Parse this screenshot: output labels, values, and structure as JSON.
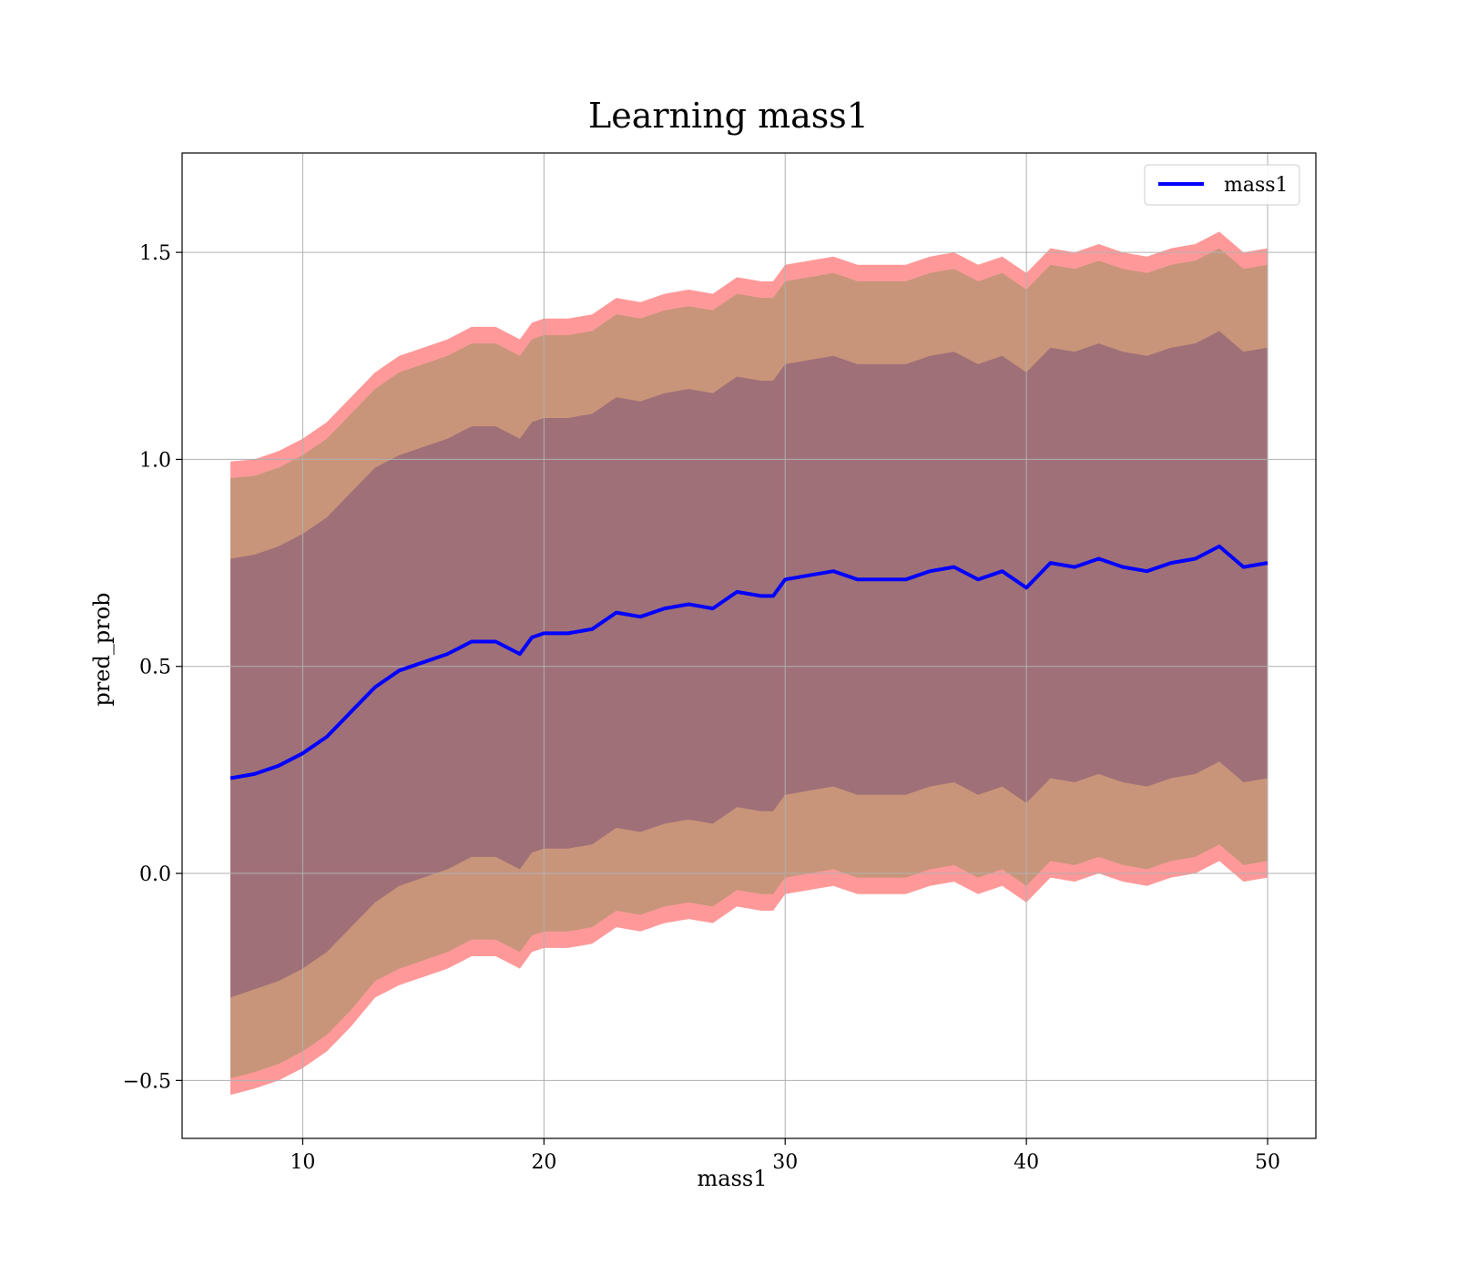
{
  "chart_data": {
    "type": "line",
    "title": "Learning mass1",
    "xlabel": "mass1",
    "ylabel": "pred_prob",
    "xlim": [
      5,
      52
    ],
    "ylim": [
      -0.64,
      1.74
    ],
    "xticks": [
      10,
      20,
      30,
      40,
      50
    ],
    "xtick_labels": [
      "10",
      "20",
      "30",
      "40",
      "50"
    ],
    "yticks": [
      -0.5,
      0.0,
      0.5,
      1.0,
      1.5
    ],
    "ytick_labels": [
      "−0.5",
      "0.0",
      "0.5",
      "1.0",
      "1.5"
    ],
    "grid": true,
    "legend": {
      "position": "upper right",
      "entries": [
        "mass1"
      ]
    },
    "colors": {
      "line": "#0000ff",
      "band_outer": "#ff9999",
      "band_mid": "#c8957a",
      "band_inner": "#a07078"
    },
    "x": [
      7,
      8,
      9,
      10,
      11,
      12,
      13,
      14,
      15,
      16,
      17,
      18,
      19,
      19.5,
      20,
      21,
      22,
      23,
      24,
      25,
      26,
      27,
      28,
      29,
      29.5,
      30,
      31,
      32,
      33,
      34,
      35,
      36,
      37,
      38,
      39,
      40,
      41,
      42,
      43,
      44,
      45,
      46,
      47,
      48,
      49,
      50
    ],
    "series": [
      {
        "name": "mass1",
        "values": [
          0.23,
          0.24,
          0.26,
          0.29,
          0.33,
          0.39,
          0.45,
          0.49,
          0.51,
          0.53,
          0.56,
          0.56,
          0.53,
          0.57,
          0.58,
          0.58,
          0.59,
          0.63,
          0.62,
          0.64,
          0.65,
          0.64,
          0.68,
          0.67,
          0.67,
          0.71,
          0.72,
          0.73,
          0.71,
          0.71,
          0.71,
          0.73,
          0.74,
          0.71,
          0.73,
          0.69,
          0.75,
          0.74,
          0.76,
          0.74,
          0.73,
          0.75,
          0.76,
          0.79,
          0.74,
          0.75
        ]
      }
    ],
    "bands": [
      {
        "lower": [
          -0.535,
          -0.52,
          -0.5,
          -0.47,
          -0.43,
          -0.37,
          -0.3,
          -0.27,
          -0.25,
          -0.23,
          -0.2,
          -0.2,
          -0.23,
          -0.19,
          -0.18,
          -0.18,
          -0.17,
          -0.13,
          -0.14,
          -0.12,
          -0.11,
          -0.12,
          -0.08,
          -0.09,
          -0.09,
          -0.05,
          -0.04,
          -0.03,
          -0.05,
          -0.05,
          -0.05,
          -0.03,
          -0.02,
          -0.05,
          -0.03,
          -0.07,
          -0.01,
          -0.02,
          0.0,
          -0.02,
          -0.03,
          -0.01,
          0.0,
          0.03,
          -0.02,
          -0.01
        ],
        "upper": [
          0.995,
          1.0,
          1.02,
          1.05,
          1.09,
          1.15,
          1.21,
          1.25,
          1.27,
          1.29,
          1.32,
          1.32,
          1.29,
          1.33,
          1.34,
          1.34,
          1.35,
          1.39,
          1.38,
          1.4,
          1.41,
          1.4,
          1.44,
          1.43,
          1.43,
          1.47,
          1.48,
          1.49,
          1.47,
          1.47,
          1.47,
          1.49,
          1.5,
          1.47,
          1.49,
          1.45,
          1.51,
          1.5,
          1.52,
          1.5,
          1.49,
          1.51,
          1.52,
          1.55,
          1.5,
          1.51
        ]
      },
      {
        "lower": [
          -0.495,
          -0.48,
          -0.46,
          -0.43,
          -0.39,
          -0.33,
          -0.26,
          -0.23,
          -0.21,
          -0.19,
          -0.16,
          -0.16,
          -0.19,
          -0.15,
          -0.14,
          -0.14,
          -0.13,
          -0.09,
          -0.1,
          -0.08,
          -0.07,
          -0.08,
          -0.04,
          -0.05,
          -0.05,
          -0.01,
          0.0,
          0.01,
          -0.01,
          -0.01,
          -0.01,
          0.01,
          0.02,
          -0.01,
          0.01,
          -0.03,
          0.03,
          0.02,
          0.04,
          0.02,
          0.01,
          0.03,
          0.04,
          0.07,
          0.02,
          0.03
        ],
        "upper": [
          0.955,
          0.96,
          0.98,
          1.01,
          1.05,
          1.11,
          1.17,
          1.21,
          1.23,
          1.25,
          1.28,
          1.28,
          1.25,
          1.29,
          1.3,
          1.3,
          1.31,
          1.35,
          1.34,
          1.36,
          1.37,
          1.36,
          1.4,
          1.39,
          1.39,
          1.43,
          1.44,
          1.45,
          1.43,
          1.43,
          1.43,
          1.45,
          1.46,
          1.43,
          1.45,
          1.41,
          1.47,
          1.46,
          1.48,
          1.46,
          1.45,
          1.47,
          1.48,
          1.51,
          1.46,
          1.47
        ]
      },
      {
        "lower": [
          -0.3,
          -0.28,
          -0.26,
          -0.23,
          -0.19,
          -0.13,
          -0.07,
          -0.03,
          -0.01,
          0.01,
          0.04,
          0.04,
          0.01,
          0.05,
          0.06,
          0.06,
          0.07,
          0.11,
          0.1,
          0.12,
          0.13,
          0.12,
          0.16,
          0.15,
          0.15,
          0.19,
          0.2,
          0.21,
          0.19,
          0.19,
          0.19,
          0.21,
          0.22,
          0.19,
          0.21,
          0.17,
          0.23,
          0.22,
          0.24,
          0.22,
          0.21,
          0.23,
          0.24,
          0.27,
          0.22,
          0.23
        ],
        "upper": [
          0.76,
          0.77,
          0.79,
          0.82,
          0.86,
          0.92,
          0.98,
          1.01,
          1.03,
          1.05,
          1.08,
          1.08,
          1.05,
          1.09,
          1.1,
          1.1,
          1.11,
          1.15,
          1.14,
          1.16,
          1.17,
          1.16,
          1.2,
          1.19,
          1.19,
          1.23,
          1.24,
          1.25,
          1.23,
          1.23,
          1.23,
          1.25,
          1.26,
          1.23,
          1.25,
          1.21,
          1.27,
          1.26,
          1.28,
          1.26,
          1.25,
          1.27,
          1.28,
          1.31,
          1.26,
          1.27
        ]
      }
    ]
  }
}
